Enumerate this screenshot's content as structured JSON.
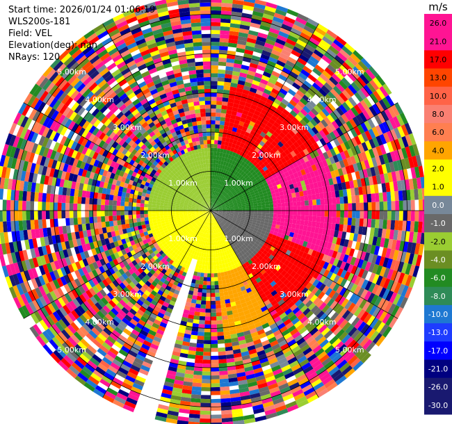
{
  "header": {
    "start_time": "Start time: 2026/01/24 01:06:19",
    "instrument": "WLS200s-181",
    "field": "Field: VEL",
    "elevation": "Elevation(deg): nan",
    "nrays": "NRays: 120"
  },
  "chart_data": {
    "type": "heatmap",
    "projection": "polar-ppi",
    "title": "",
    "rings": [
      {
        "value": 1,
        "label": "1.00km"
      },
      {
        "value": 2,
        "label": "2.00km"
      },
      {
        "value": 3,
        "label": "3.00km"
      },
      {
        "value": 4,
        "label": "4.00km"
      },
      {
        "value": 5,
        "label": "5.00km"
      }
    ],
    "range_max_km": 5.5,
    "n_rays": 120,
    "spokes_deg": [
      0,
      30,
      60,
      90,
      120,
      150,
      180,
      210,
      240,
      270,
      300,
      330
    ],
    "colorbar": {
      "unit": "m/s",
      "bins": [
        {
          "label": "-30.0",
          "color": "#191970"
        },
        {
          "label": "-26.0",
          "color": "#191970"
        },
        {
          "label": "-21.0",
          "color": "#000080"
        },
        {
          "label": "-17.0",
          "color": "#0000ff"
        },
        {
          "label": "-13.0",
          "color": "#1e3cff"
        },
        {
          "label": "-10.0",
          "color": "#1e78d2"
        },
        {
          "label": "-8.0",
          "color": "#2e8b57"
        },
        {
          "label": "-6.0",
          "color": "#228b22"
        },
        {
          "label": "-4.0",
          "color": "#6b8e23"
        },
        {
          "label": "-2.0",
          "color": "#9acd32"
        },
        {
          "label": "-1.0",
          "color": "#696969"
        },
        {
          "label": "0.0",
          "color": "#778899"
        },
        {
          "label": "1.0",
          "color": "#ffff00"
        },
        {
          "label": "2.0",
          "color": "#ffff00"
        },
        {
          "label": "4.0",
          "color": "#ffa500"
        },
        {
          "label": "6.0",
          "color": "#ff7f50"
        },
        {
          "label": "8.0",
          "color": "#fa8072"
        },
        {
          "label": "10.0",
          "color": "#ff6347"
        },
        {
          "label": "13.0",
          "color": "#ff4500"
        },
        {
          "label": "17.0",
          "color": "#ff0000"
        },
        {
          "label": "21.0",
          "color": "#ff1493"
        },
        {
          "label": "26.0",
          "color": "#ff1493"
        }
      ]
    },
    "velocity_pattern": {
      "near_rings": [
        {
          "az": [
            270,
            360
          ],
          "value": -2.0
        },
        {
          "az": [
            0,
            90
          ],
          "value": -6.0
        },
        {
          "az": [
            90,
            150
          ],
          "value": -1.0
        },
        {
          "az": [
            150,
            270
          ],
          "value": 2.0
        }
      ],
      "mid_rings": [
        {
          "az": [
            10,
            60
          ],
          "value": 17.0
        },
        {
          "az": [
            60,
            110
          ],
          "value": 26.0
        },
        {
          "az": [
            110,
            150
          ],
          "value": 17.0
        },
        {
          "az": [
            150,
            175
          ],
          "value": 4.0
        }
      ],
      "outer": "noise",
      "blocked_sector_deg": [
        195,
        200
      ]
    }
  }
}
